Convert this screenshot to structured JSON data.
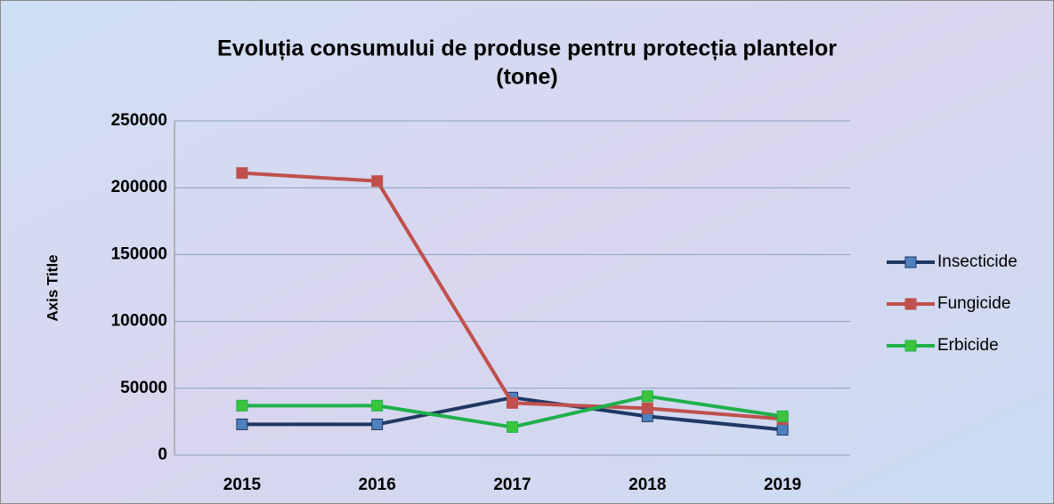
{
  "chart_data": {
    "type": "line",
    "title": [
      "Evoluția consumului de produse pentru protecția plantelor",
      "(tone)"
    ],
    "y_axis_label": "Axis Title",
    "categories": [
      "2015",
      "2016",
      "2017",
      "2018",
      "2019"
    ],
    "series": [
      {
        "name": "Insecticide",
        "color": "#1f3864",
        "marker_color": "#4f81bd",
        "values": [
          23000,
          23000,
          43000,
          29000,
          19000
        ]
      },
      {
        "name": "Fungicide",
        "color": "#c0504d",
        "marker_color": "#c0504d",
        "values": [
          211000,
          205000,
          39000,
          35000,
          27000
        ]
      },
      {
        "name": "Erbicide",
        "color": "#1fb04b",
        "marker_color": "#3cc43c",
        "values": [
          37000,
          37000,
          21000,
          44000,
          29000
        ]
      }
    ],
    "ylim": [
      0,
      250000
    ],
    "yticks": [
      0,
      50000,
      100000,
      150000,
      200000,
      250000
    ],
    "grid": true,
    "legend": "right"
  }
}
